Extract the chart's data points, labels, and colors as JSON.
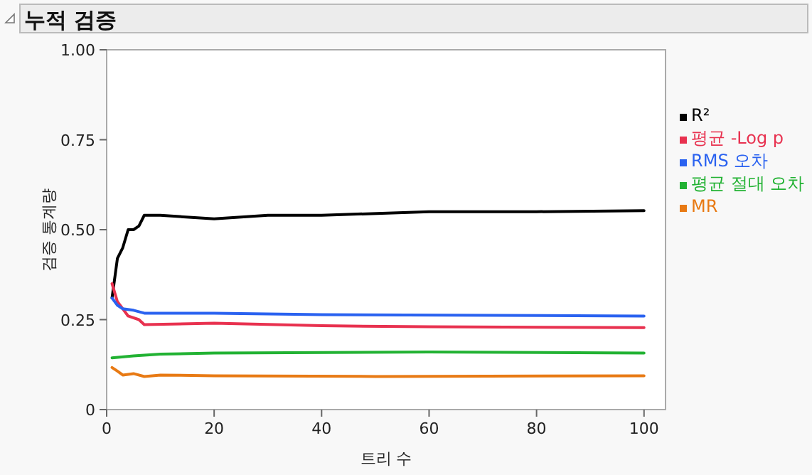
{
  "chart_data": {
    "type": "line",
    "title": "누적 검증",
    "xlabel": "트리 수",
    "ylabel": "검증 통계량",
    "xlim": [
      0,
      104
    ],
    "ylim": [
      0,
      1
    ],
    "xticks": [
      0,
      20,
      40,
      60,
      80,
      100
    ],
    "yticks": [
      {
        "value": 0,
        "label": "0"
      },
      {
        "value": 0.25,
        "label": "0.25"
      },
      {
        "value": 0.5,
        "label": "0.50"
      },
      {
        "value": 0.75,
        "label": "0.75"
      },
      {
        "value": 1,
        "label": "1.00"
      }
    ],
    "legend": "right",
    "grid": false,
    "series": [
      {
        "name": "R²",
        "color": "#000000",
        "x": [
          1,
          2,
          3,
          4,
          5,
          6,
          7,
          10,
          20,
          30,
          40,
          60,
          80,
          100
        ],
        "values": [
          0.31,
          0.42,
          0.45,
          0.5,
          0.5,
          0.51,
          0.54,
          0.54,
          0.53,
          0.54,
          0.54,
          0.55,
          0.55,
          0.553
        ]
      },
      {
        "name": "평균 -Log p",
        "color": "#e8314f",
        "x": [
          1,
          2,
          3,
          4,
          6,
          7,
          20,
          40,
          60,
          100
        ],
        "values": [
          0.35,
          0.3,
          0.28,
          0.26,
          0.25,
          0.236,
          0.24,
          0.233,
          0.23,
          0.228
        ]
      },
      {
        "name": "RMS 오차",
        "color": "#2a62f0",
        "x": [
          1,
          2,
          3,
          5,
          7,
          20,
          40,
          100
        ],
        "values": [
          0.31,
          0.29,
          0.28,
          0.276,
          0.268,
          0.268,
          0.264,
          0.26
        ]
      },
      {
        "name": "평균 절대 오차",
        "color": "#22b233",
        "x": [
          1,
          5,
          10,
          20,
          60,
          100
        ],
        "values": [
          0.144,
          0.149,
          0.154,
          0.157,
          0.16,
          0.157
        ]
      },
      {
        "name": "MR",
        "color": "#e87a14",
        "x": [
          1,
          2,
          3,
          5,
          7,
          10,
          20,
          50,
          100
        ],
        "values": [
          0.117,
          0.107,
          0.096,
          0.1,
          0.092,
          0.096,
          0.094,
          0.092,
          0.094
        ]
      }
    ]
  }
}
